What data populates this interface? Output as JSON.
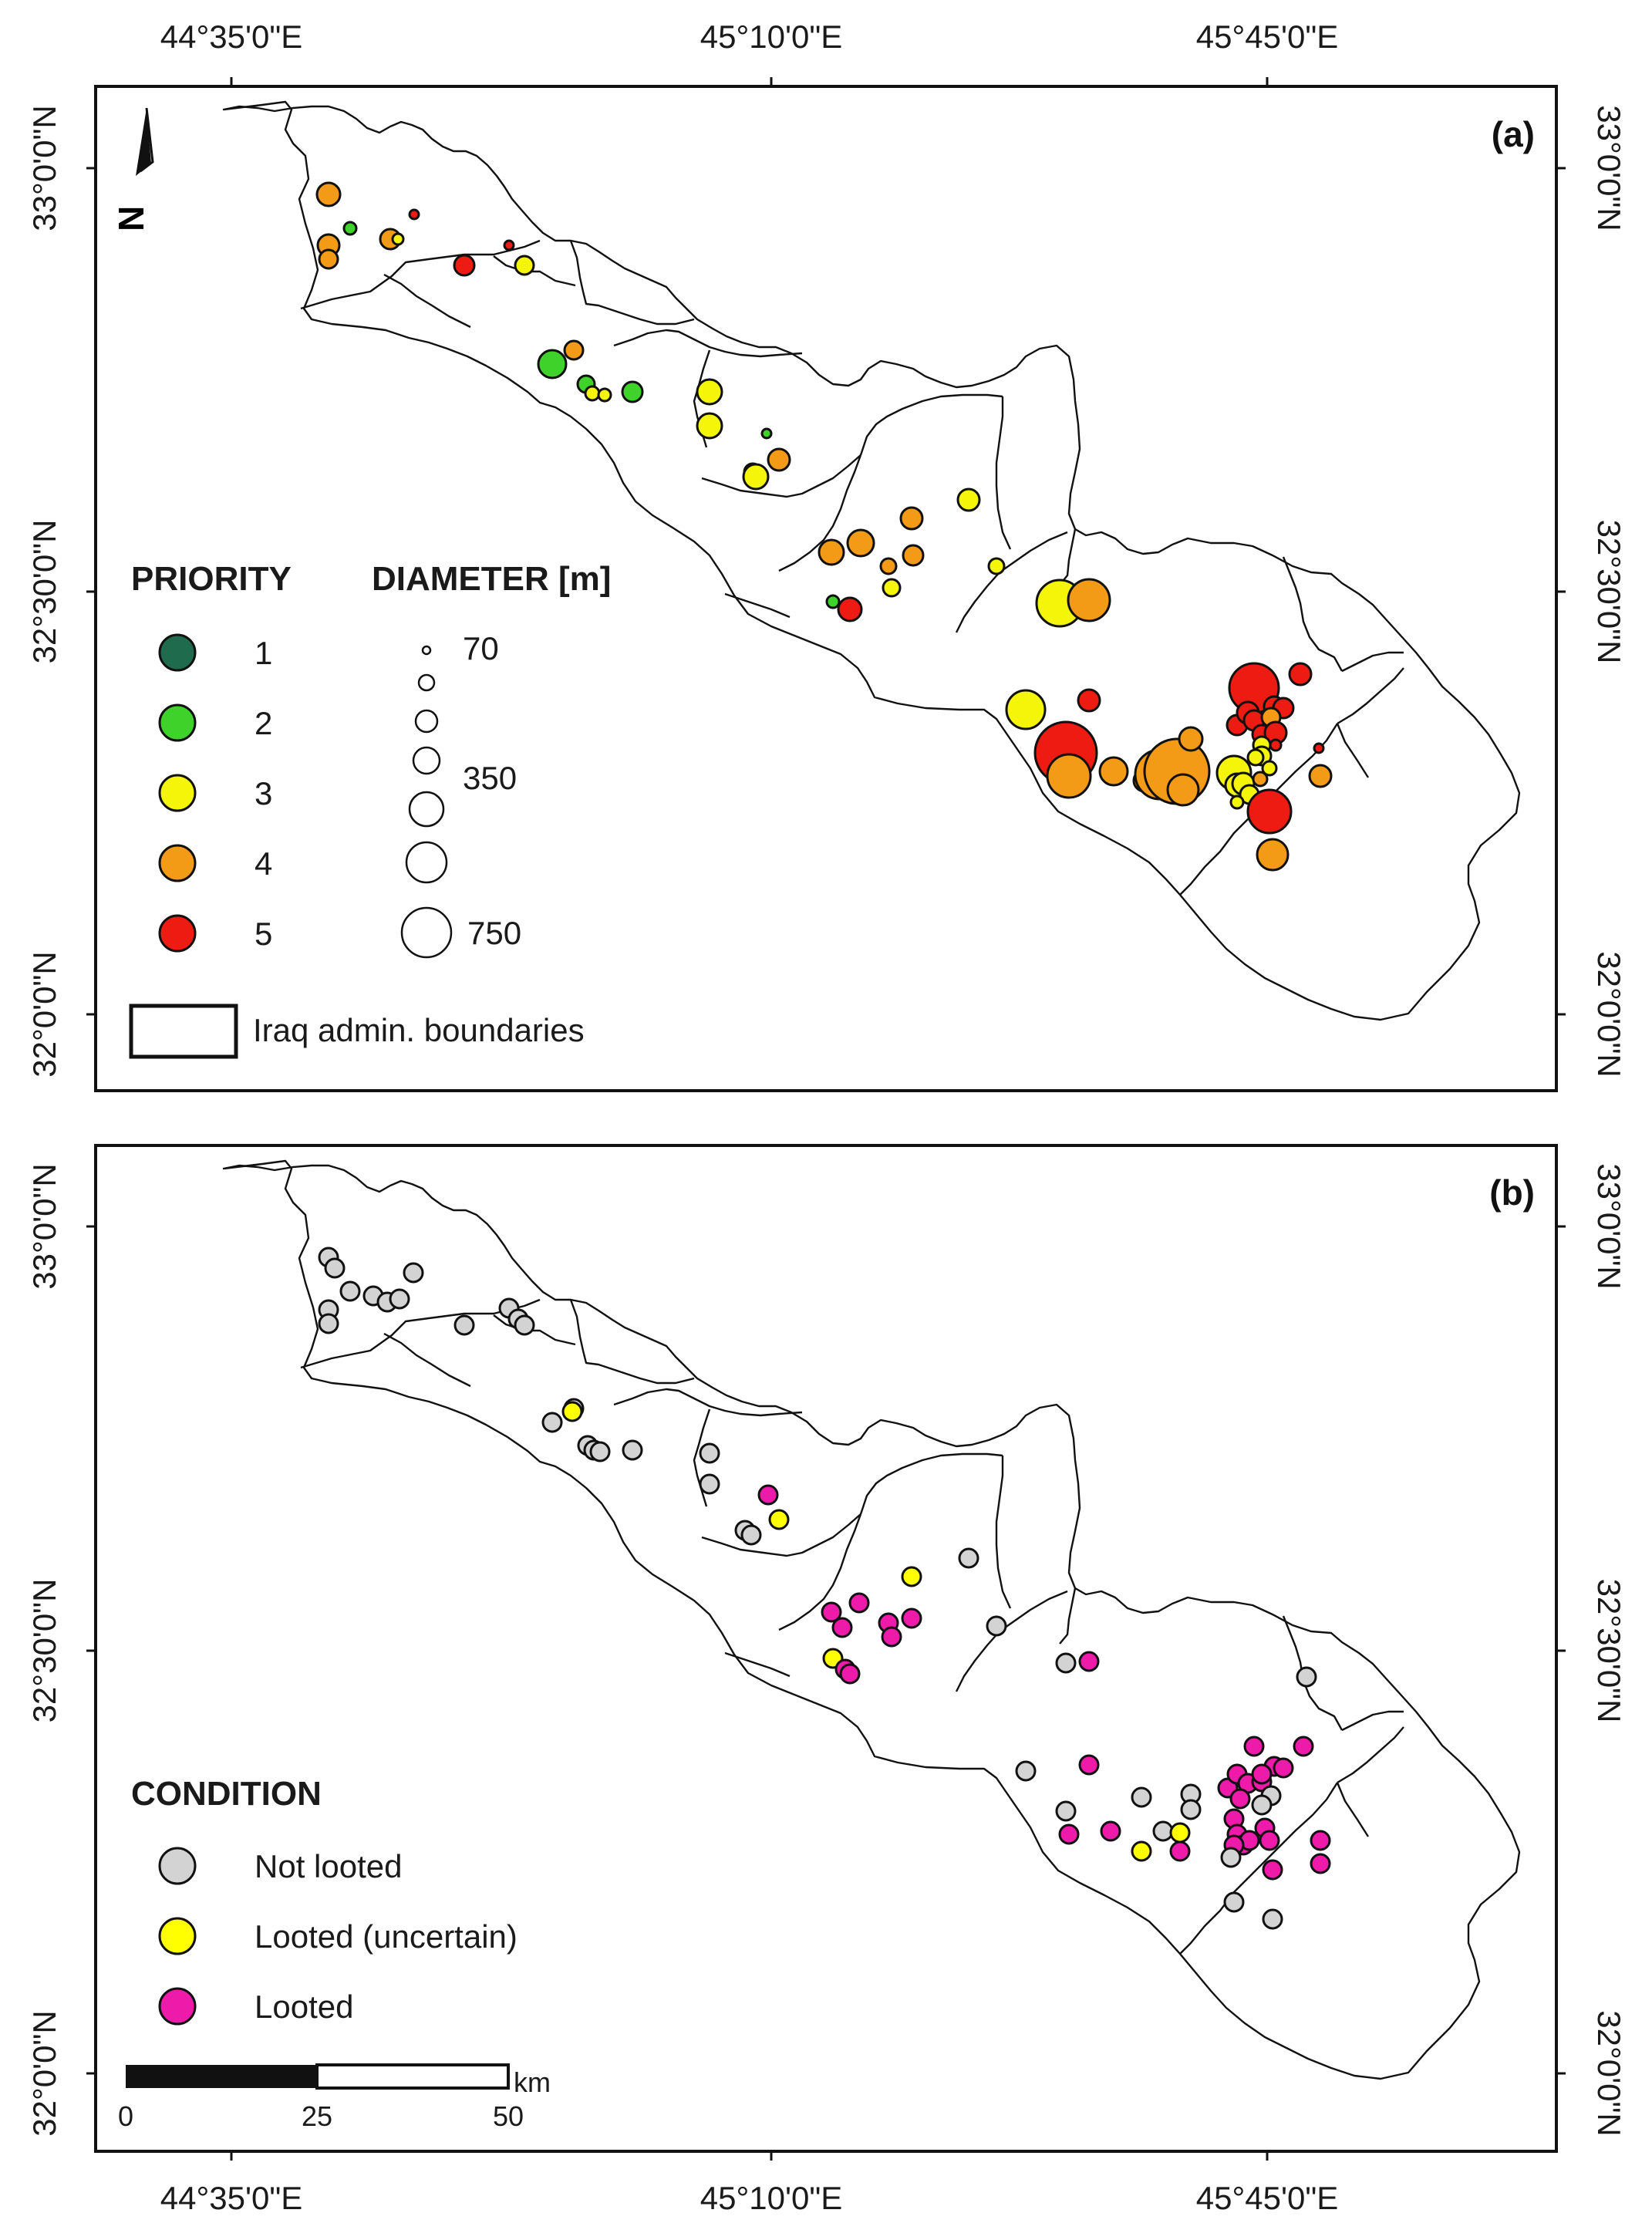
{
  "lon_labels": [
    "44°35'0\"E",
    "45°10'0\"E",
    "45°45'0\"E"
  ],
  "lat_labels": [
    "33°0'0\"N",
    "32°30'0\"N",
    "32°0'0\"N"
  ],
  "panels": [
    {
      "label": "(a)",
      "priority_legend": {
        "title": "PRIORITY",
        "items": [
          {
            "label": "1",
            "color": "#1f6b4e"
          },
          {
            "label": "2",
            "color": "#3fd22a"
          },
          {
            "label": "3",
            "color": "#f5f50a"
          },
          {
            "label": "4",
            "color": "#f39a17"
          },
          {
            "label": "5",
            "color": "#ee1b12"
          }
        ]
      },
      "diameter_legend": {
        "title": "DIAMETER [m]",
        "labels": [
          "70",
          "350",
          "750"
        ]
      },
      "boundary_legend": "Iraq admin. boundaries",
      "north_arrow_label": "N"
    },
    {
      "label": "(b)",
      "condition_legend": {
        "title": "CONDITION",
        "items": [
          {
            "label": "Not looted",
            "color": "#d3d3d3"
          },
          {
            "label": "Looted (uncertain)",
            "color": "#ffff00"
          },
          {
            "label": "Looted",
            "color": "#ee1aa9"
          }
        ]
      },
      "scalebar": {
        "ticks": [
          "0",
          "25",
          "50"
        ],
        "unit": "km"
      }
    }
  ]
}
